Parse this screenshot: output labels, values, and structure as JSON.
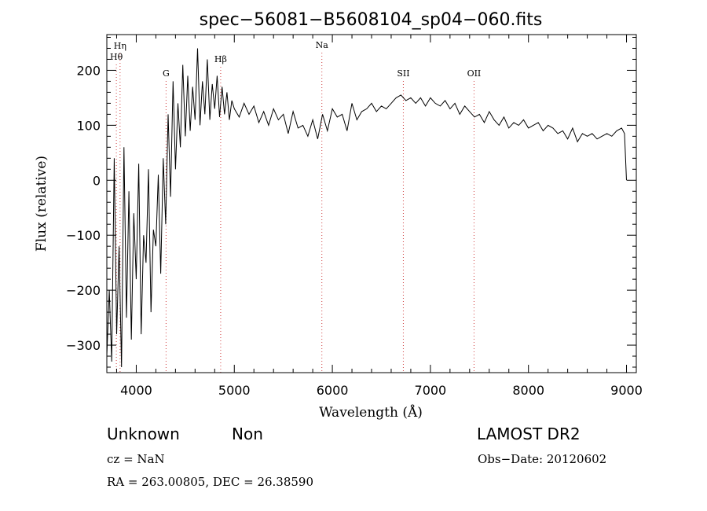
{
  "chart_data": {
    "type": "line",
    "title": "spec−56081−B5608104_sp04−060.fits",
    "xlabel": "Wavelength (Å)",
    "ylabel": "Flux (relative)",
    "xlim": [
      3700,
      9100
    ],
    "ylim": [
      -350,
      265
    ],
    "x_ticks": [
      4000,
      5000,
      6000,
      7000,
      8000,
      9000
    ],
    "x_tick_labels": [
      "4000",
      "5000",
      "6000",
      "7000",
      "8000",
      "9000"
    ],
    "y_ticks": [
      -300,
      -200,
      -100,
      0,
      100,
      200
    ],
    "y_tick_labels": [
      "−300",
      "−200",
      "−100",
      "0",
      "100",
      "200"
    ],
    "grid": false,
    "series": [
      {
        "x": [
          3700,
          3725,
          3750,
          3775,
          3800,
          3825,
          3850,
          3875,
          3900,
          3925,
          3950,
          3975,
          4000,
          4025,
          4050,
          4075,
          4100,
          4125,
          4150,
          4175,
          4200,
          4225,
          4250,
          4275,
          4300,
          4325,
          4350,
          4375,
          4400,
          4425,
          4450,
          4475,
          4500,
          4525,
          4550,
          4575,
          4600,
          4625,
          4650,
          4675,
          4700,
          4725,
          4750,
          4775,
          4800,
          4825,
          4850,
          4875,
          4900,
          4925,
          4950,
          4975,
          5000,
          5050,
          5100,
          5150,
          5200,
          5250,
          5300,
          5350,
          5400,
          5450,
          5500,
          5550,
          5600,
          5650,
          5700,
          5750,
          5800,
          5850,
          5900,
          5950,
          6000,
          6050,
          6100,
          6150,
          6200,
          6250,
          6300,
          6350,
          6400,
          6450,
          6500,
          6550,
          6600,
          6650,
          6700,
          6750,
          6800,
          6850,
          6900,
          6950,
          7000,
          7050,
          7100,
          7150,
          7200,
          7250,
          7300,
          7350,
          7400,
          7450,
          7500,
          7550,
          7600,
          7650,
          7700,
          7750,
          7800,
          7850,
          7900,
          7950,
          8000,
          8050,
          8100,
          8150,
          8200,
          8250,
          8300,
          8350,
          8400,
          8450,
          8500,
          8550,
          8600,
          8650,
          8700,
          8750,
          8800,
          8850,
          8900,
          8950,
          8980,
          9000
        ],
        "y": [
          -320,
          -200,
          -330,
          40,
          -280,
          -120,
          -340,
          60,
          -250,
          -20,
          -290,
          -60,
          -180,
          30,
          -280,
          -100,
          -150,
          20,
          -240,
          -90,
          -120,
          10,
          -170,
          40,
          -80,
          120,
          -30,
          180,
          20,
          140,
          60,
          210,
          80,
          190,
          90,
          170,
          110,
          240,
          100,
          180,
          120,
          220,
          110,
          175,
          130,
          190,
          115,
          170,
          120,
          160,
          110,
          145,
          130,
          115,
          140,
          120,
          135,
          105,
          125,
          100,
          130,
          110,
          120,
          85,
          125,
          95,
          100,
          80,
          110,
          75,
          120,
          90,
          130,
          115,
          120,
          90,
          140,
          110,
          125,
          130,
          140,
          125,
          135,
          130,
          140,
          150,
          155,
          145,
          150,
          140,
          150,
          135,
          150,
          140,
          135,
          145,
          130,
          140,
          120,
          135,
          125,
          115,
          120,
          105,
          125,
          110,
          100,
          115,
          95,
          105,
          100,
          110,
          95,
          100,
          105,
          90,
          100,
          95,
          85,
          90,
          75,
          95,
          70,
          85,
          80,
          85,
          75,
          80,
          85,
          80,
          90,
          95,
          85,
          0
        ]
      }
    ],
    "spectral_lines": [
      {
        "label": "Hη",
        "x": 3835
      },
      {
        "label": "Hθ",
        "x": 3797
      },
      {
        "label": "G",
        "x": 4304
      },
      {
        "label": "Hβ",
        "x": 4861
      },
      {
        "label": "Na",
        "x": 5893
      },
      {
        "label": "SII",
        "x": 6724
      },
      {
        "label": "OII",
        "x": 7445
      }
    ]
  },
  "info": {
    "class": "Unknown",
    "subclass": "Non",
    "survey": "LAMOST DR2",
    "cz": "cz = NaN",
    "obs_date": "Obs−Date: 20120602",
    "coords": "RA = 263.00805, DEC =  26.38590"
  }
}
